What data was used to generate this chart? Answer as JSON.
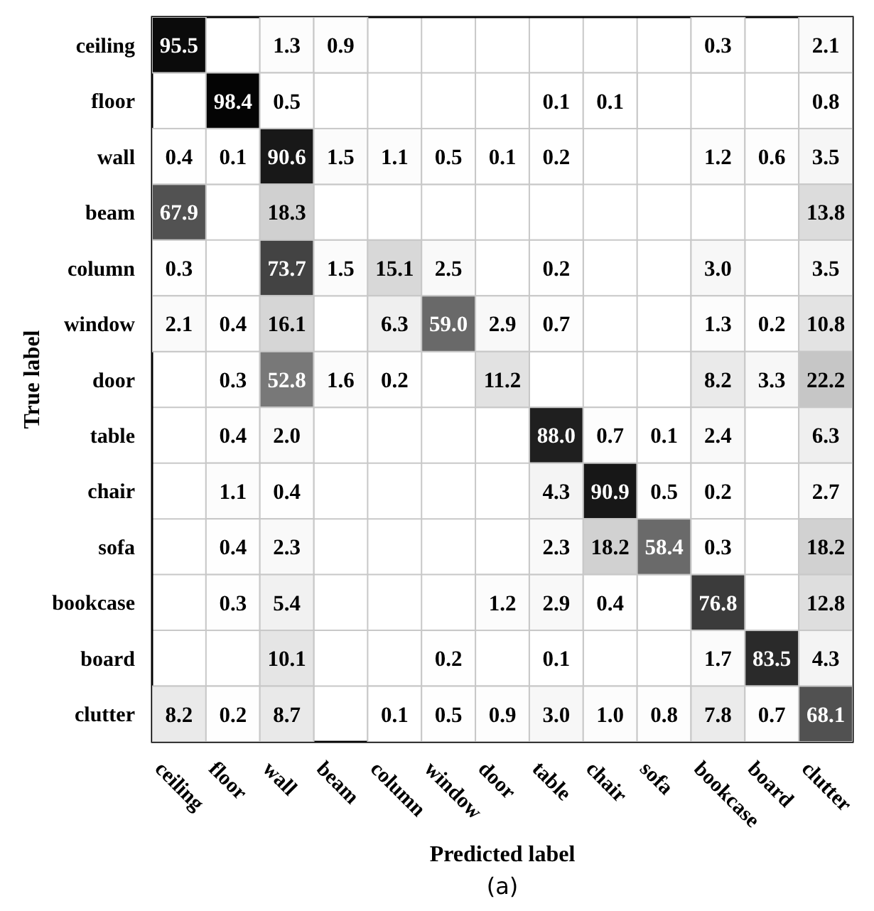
{
  "chart_data": {
    "type": "heatmap",
    "xlabel": "Predicted label",
    "ylabel": "True label",
    "annotations": [
      "(a)"
    ],
    "data_labels": true,
    "categories": [
      "ceiling",
      "floor",
      "wall",
      "beam",
      "column",
      "window",
      "door",
      "table",
      "chair",
      "sofa",
      "bookcase",
      "board",
      "clutter"
    ],
    "y_categories": [
      "ceiling",
      "floor",
      "wall",
      "beam",
      "column",
      "window",
      "door",
      "table",
      "chair",
      "sofa",
      "bookcase",
      "board",
      "clutter"
    ],
    "cells": [
      [
        95.5,
        null,
        1.3,
        0.9,
        null,
        null,
        null,
        null,
        null,
        null,
        0.3,
        null,
        2.1
      ],
      [
        null,
        98.4,
        0.5,
        null,
        null,
        null,
        null,
        0.1,
        0.1,
        null,
        null,
        null,
        0.8
      ],
      [
        0.4,
        0.1,
        90.6,
        1.5,
        1.1,
        0.5,
        0.1,
        0.2,
        null,
        null,
        1.2,
        0.6,
        3.5
      ],
      [
        67.9,
        null,
        18.3,
        null,
        null,
        null,
        null,
        null,
        null,
        null,
        null,
        null,
        13.8
      ],
      [
        0.3,
        null,
        73.7,
        1.5,
        15.1,
        2.5,
        null,
        0.2,
        null,
        null,
        3.0,
        null,
        3.5
      ],
      [
        2.1,
        0.4,
        16.1,
        null,
        6.3,
        59.0,
        2.9,
        0.7,
        null,
        null,
        1.3,
        0.2,
        10.8
      ],
      [
        null,
        0.3,
        52.8,
        1.6,
        0.2,
        null,
        11.2,
        null,
        null,
        null,
        8.2,
        3.3,
        22.2
      ],
      [
        null,
        0.4,
        2.0,
        null,
        null,
        null,
        null,
        88.0,
        0.7,
        0.1,
        2.4,
        null,
        6.3
      ],
      [
        null,
        1.1,
        0.4,
        null,
        null,
        null,
        null,
        4.3,
        90.9,
        0.5,
        0.2,
        null,
        2.7
      ],
      [
        null,
        0.4,
        2.3,
        null,
        null,
        null,
        null,
        2.3,
        18.2,
        58.4,
        0.3,
        null,
        18.2
      ],
      [
        null,
        0.3,
        5.4,
        null,
        null,
        null,
        1.2,
        2.9,
        0.4,
        null,
        76.8,
        null,
        12.8
      ],
      [
        null,
        null,
        10.1,
        null,
        null,
        0.2,
        null,
        0.1,
        null,
        null,
        1.7,
        83.5,
        4.3
      ],
      [
        8.2,
        0.2,
        8.7,
        null,
        0.1,
        0.5,
        0.9,
        3.0,
        1.0,
        0.8,
        7.8,
        0.7,
        68.1
      ]
    ],
    "cell_labels": [
      [
        "95.5",
        null,
        "1.3",
        "0.9",
        null,
        null,
        null,
        null,
        null,
        null,
        "0.3",
        null,
        "2.1"
      ],
      [
        null,
        "98.4",
        "0.5",
        null,
        null,
        null,
        null,
        "0.1",
        "0.1",
        null,
        null,
        null,
        "0.8"
      ],
      [
        "0.4",
        "0.1",
        "90.6",
        "1.5",
        "1.1",
        "0.5",
        "0.1",
        "0.2",
        null,
        null,
        "1.2",
        "0.6",
        "3.5"
      ],
      [
        "67.9",
        null,
        "18.3",
        null,
        null,
        null,
        null,
        null,
        null,
        null,
        null,
        null,
        "13.8"
      ],
      [
        "0.3",
        null,
        "73.7",
        "1.5",
        "15.1",
        "2.5",
        null,
        "0.2",
        null,
        null,
        "3.0",
        null,
        "3.5"
      ],
      [
        "2.1",
        "0.4",
        "16.1",
        null,
        "6.3",
        "59.0",
        "2.9",
        "0.7",
        null,
        null,
        "1.3",
        "0.2",
        "10.8"
      ],
      [
        null,
        "0.3",
        "52.8",
        "1.6",
        "0.2",
        null,
        "11.2",
        null,
        null,
        null,
        "8.2",
        "3.3",
        "22.2"
      ],
      [
        null,
        "0.4",
        "2.0",
        null,
        null,
        null,
        null,
        "88.0",
        "0.7",
        "0.1",
        "2.4",
        null,
        "6.3"
      ],
      [
        null,
        "1.1",
        "0.4",
        null,
        null,
        null,
        null,
        "4.3",
        "90.9",
        "0.5",
        "0.2",
        null,
        "2.7"
      ],
      [
        null,
        "0.4",
        "2.3",
        null,
        null,
        null,
        null,
        "2.3",
        "18.2",
        "58.4",
        "0.3",
        null,
        "18.2"
      ],
      [
        null,
        "0.3",
        "5.4",
        null,
        null,
        null,
        "1.2",
        "2.9",
        "0.4",
        null,
        "76.8",
        null,
        "12.8"
      ],
      [
        null,
        null,
        "10.1",
        null,
        null,
        "0.2",
        null,
        "0.1",
        null,
        null,
        "1.7",
        "83.5",
        "4.3"
      ],
      [
        "8.2",
        "0.2",
        "8.7",
        null,
        "0.1",
        "0.5",
        "0.9",
        "3.0",
        "1.0",
        "0.8",
        "7.8",
        "0.7",
        "68.1"
      ]
    ]
  }
}
